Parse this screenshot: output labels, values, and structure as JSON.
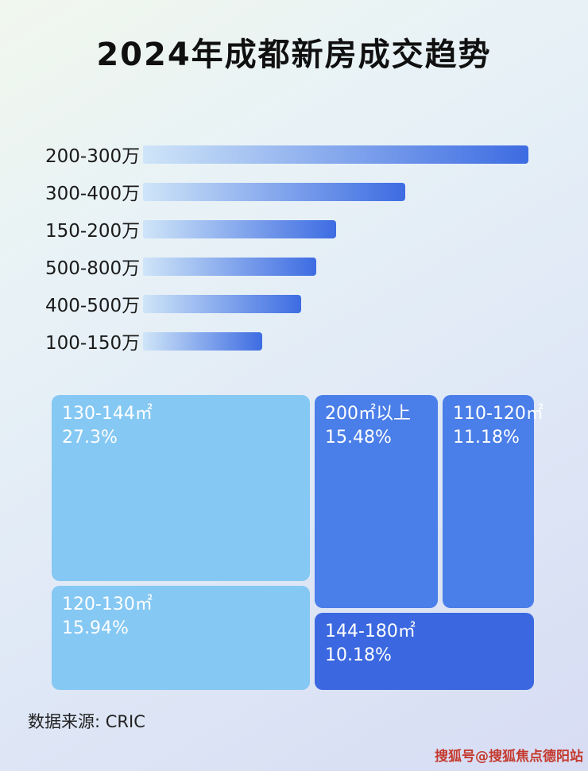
{
  "page": {
    "title": "2024年成都新房成交趋势",
    "source": "数据来源: CRIC",
    "watermark": "搜狐号@搜狐焦点德阳站"
  },
  "colors": {
    "bar_gradient_start": "#cfe5f8",
    "bar_gradient_end": "#3d6ce2",
    "treemap_light": "#85c8f3",
    "treemap_medium": "#4a7ee8",
    "treemap_dark": "#3b68e0",
    "block_text": "#ffffff",
    "watermark_red": "#c43a2e"
  },
  "chart_data": [
    {
      "type": "bar",
      "orientation": "horizontal",
      "title": "2024年成都新房成交趋势",
      "categories": [
        "200-300万",
        "300-400万",
        "150-200万",
        "500-800万",
        "400-500万",
        "100-150万"
      ],
      "values": [
        100,
        68,
        50,
        45,
        41,
        31
      ],
      "value_unit": "estimated relative bar length, % of longest bar (no numeric axis or data labels shown)",
      "legend": false,
      "grid": false
    },
    {
      "type": "treemap",
      "items": [
        {
          "label": "130-144㎡",
          "value": 27.3,
          "display": "27.3%",
          "tone": "light"
        },
        {
          "label": "120-130㎡",
          "value": 15.94,
          "display": "15.94%",
          "tone": "light"
        },
        {
          "label": "200㎡以上",
          "value": 15.48,
          "display": "15.48%",
          "tone": "medium"
        },
        {
          "label": "110-120㎡",
          "value": 11.18,
          "display": "11.18%",
          "tone": "medium"
        },
        {
          "label": "144-180㎡",
          "value": 10.18,
          "display": "10.18%",
          "tone": "dark"
        }
      ]
    }
  ]
}
